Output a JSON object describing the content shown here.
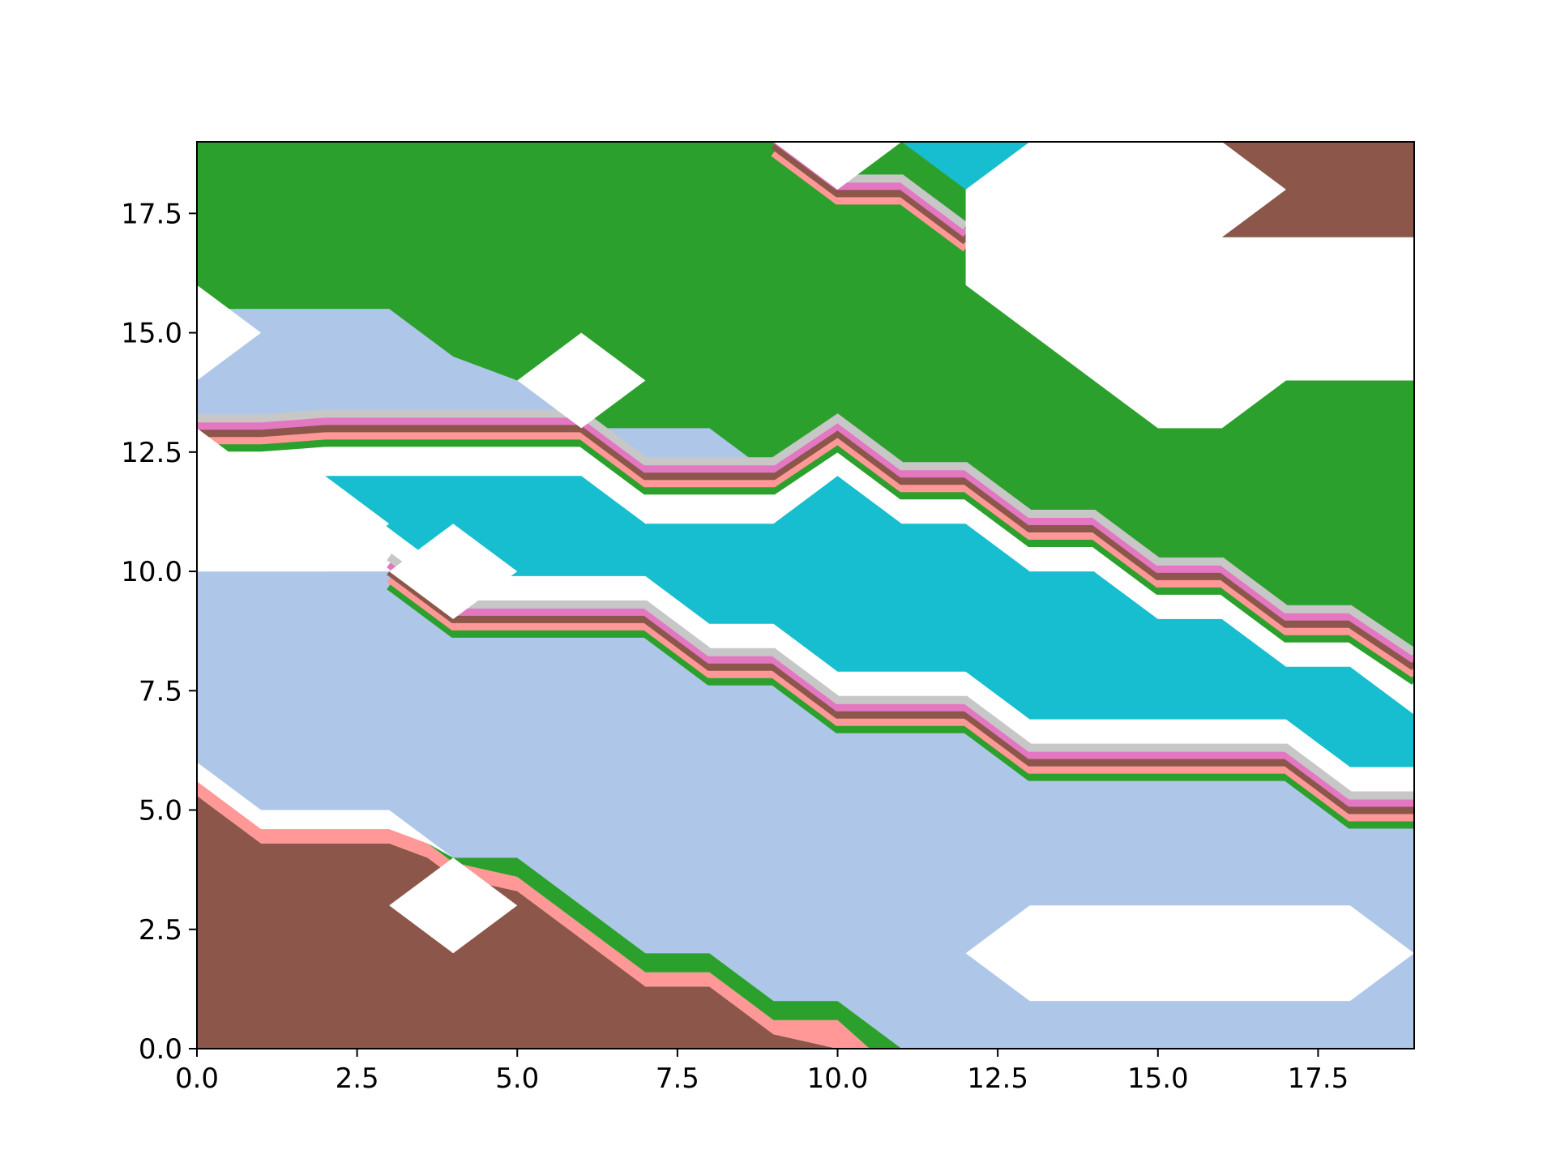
{
  "chart_data": {
    "type": "contourf",
    "title": "",
    "xlabel": "",
    "ylabel": "",
    "xlim": [
      0,
      19
    ],
    "ylim": [
      0,
      19
    ],
    "grid": false,
    "legend": "none",
    "x_ticks": [
      "0.0",
      "2.5",
      "5.0",
      "7.5",
      "10.0",
      "12.5",
      "15.0",
      "17.5"
    ],
    "y_ticks": [
      "0.0",
      "2.5",
      "5.0",
      "7.5",
      "10.0",
      "12.5",
      "15.0",
      "17.5"
    ],
    "x_tick_values": [
      0,
      2.5,
      5,
      7.5,
      10,
      12.5,
      15,
      17.5
    ],
    "y_tick_values": [
      0,
      2.5,
      5,
      7.5,
      10,
      12.5,
      15,
      17.5
    ],
    "colors": {
      "brown": "#8c564b",
      "salmon": "#ff9896",
      "green": "#2ca02c",
      "lightblue": "#aec7e8",
      "cyan": "#17becf",
      "pink": "#e377c2",
      "gray": "#c7c7c7",
      "white": "#ffffff",
      "axes": "#000000"
    },
    "regions": [
      {
        "color": "green",
        "points": [
          [
            0,
            19
          ],
          [
            19,
            19
          ],
          [
            19,
            8
          ],
          [
            18,
            8.9
          ],
          [
            17,
            8.9
          ],
          [
            16,
            9.9
          ],
          [
            15,
            9.9
          ],
          [
            14,
            10.9
          ],
          [
            13,
            10.9
          ],
          [
            12,
            11.9
          ],
          [
            11,
            11.9
          ],
          [
            10,
            12.9
          ],
          [
            9,
            12
          ],
          [
            7,
            12
          ],
          [
            6,
            13
          ],
          [
            0,
            13
          ]
        ]
      },
      {
        "color": "lightblue",
        "points": [
          [
            0,
            15.5
          ],
          [
            3,
            15.5
          ],
          [
            4,
            14.5
          ],
          [
            5,
            14
          ],
          [
            6,
            13
          ],
          [
            0,
            13
          ]
        ]
      },
      {
        "color": "lightblue",
        "points": [
          [
            6,
            13
          ],
          [
            8,
            13
          ],
          [
            9,
            12
          ],
          [
            7,
            12
          ]
        ]
      },
      {
        "color": "lightblue",
        "points": [
          [
            0,
            10
          ],
          [
            3,
            10
          ],
          [
            4,
            9
          ],
          [
            6,
            9
          ],
          [
            7,
            9
          ],
          [
            8,
            8
          ],
          [
            9,
            8
          ],
          [
            10,
            7
          ],
          [
            12,
            7
          ],
          [
            13,
            6
          ],
          [
            17,
            6
          ],
          [
            18,
            5
          ],
          [
            19,
            5
          ],
          [
            19,
            0
          ],
          [
            11,
            0
          ],
          [
            10,
            1
          ],
          [
            9,
            1
          ],
          [
            8,
            2
          ],
          [
            7,
            2
          ],
          [
            5,
            4
          ],
          [
            4,
            4
          ],
          [
            3,
            5
          ],
          [
            1,
            5
          ],
          [
            0,
            6
          ]
        ]
      },
      {
        "color": "cyan",
        "points": [
          [
            1,
            12
          ],
          [
            6,
            12
          ],
          [
            7,
            11
          ],
          [
            9,
            11
          ],
          [
            10,
            12
          ],
          [
            11,
            11
          ],
          [
            12,
            11
          ],
          [
            13,
            10
          ],
          [
            14,
            10
          ],
          [
            15,
            9
          ],
          [
            16,
            9
          ],
          [
            17,
            8
          ],
          [
            18,
            8
          ],
          [
            19,
            7
          ],
          [
            19,
            5.9
          ],
          [
            18,
            5.9
          ],
          [
            17,
            6.9
          ],
          [
            13,
            6.9
          ],
          [
            12,
            7.9
          ],
          [
            10,
            7.9
          ],
          [
            9,
            8.9
          ],
          [
            8,
            8.9
          ],
          [
            7,
            9.9
          ],
          [
            5,
            9.9
          ],
          [
            4,
            9.9
          ],
          [
            3,
            10.9
          ],
          [
            2,
            12
          ]
        ]
      },
      {
        "color": "cyan",
        "points": [
          [
            11,
            19
          ],
          [
            13,
            19
          ],
          [
            12,
            18
          ]
        ]
      },
      {
        "color": "brown",
        "points": [
          [
            0,
            0
          ],
          [
            10,
            0
          ],
          [
            9,
            0.3
          ],
          [
            8,
            1.3
          ],
          [
            7,
            1.3
          ],
          [
            5,
            3.3
          ],
          [
            4,
            3.6
          ],
          [
            3.6,
            4
          ],
          [
            3,
            4.3
          ],
          [
            1,
            4.3
          ],
          [
            0,
            5.3
          ]
        ]
      },
      {
        "color": "salmon",
        "points": [
          [
            0,
            5.3
          ],
          [
            1,
            4.3
          ],
          [
            3,
            4.3
          ],
          [
            3.6,
            4
          ],
          [
            4,
            3.6
          ],
          [
            5,
            3.3
          ],
          [
            7,
            1.3
          ],
          [
            8,
            1.3
          ],
          [
            9,
            0.3
          ],
          [
            10,
            0
          ],
          [
            10.5,
            0
          ],
          [
            10,
            0.6
          ],
          [
            9,
            0.6
          ],
          [
            8,
            1.6
          ],
          [
            7,
            1.6
          ],
          [
            5,
            3.6
          ],
          [
            4,
            3.9
          ],
          [
            3.6,
            4.3
          ],
          [
            3,
            4.6
          ],
          [
            1,
            4.6
          ],
          [
            0,
            5.6
          ]
        ]
      },
      {
        "color": "green",
        "points": [
          [
            0,
            5.6
          ],
          [
            1,
            4.6
          ],
          [
            3,
            4.6
          ],
          [
            3.6,
            4.3
          ],
          [
            4,
            4
          ],
          [
            5,
            4
          ],
          [
            7,
            2
          ],
          [
            8,
            2
          ],
          [
            9,
            1
          ],
          [
            10,
            1
          ],
          [
            11,
            0
          ],
          [
            10.5,
            0
          ],
          [
            10,
            0.6
          ],
          [
            9,
            0.6
          ],
          [
            8,
            1.6
          ],
          [
            7,
            1.6
          ],
          [
            5,
            3.6
          ],
          [
            4,
            3.9
          ],
          [
            3.6,
            4.3
          ],
          [
            3,
            4.6
          ],
          [
            1,
            4.6
          ],
          [
            0,
            5.6
          ]
        ]
      },
      {
        "color": "brown",
        "points": [
          [
            16,
            19
          ],
          [
            19,
            19
          ],
          [
            19,
            17
          ],
          [
            16,
            17
          ],
          [
            17,
            18
          ]
        ]
      }
    ],
    "bands": [
      {
        "points": [
          [
            0,
            12.9
          ],
          [
            1,
            12.9
          ],
          [
            2,
            13
          ],
          [
            6,
            13
          ],
          [
            7,
            12
          ],
          [
            9,
            12
          ],
          [
            10,
            12.9
          ],
          [
            11,
            11.9
          ],
          [
            12,
            11.9
          ],
          [
            13,
            10.9
          ],
          [
            14,
            10.9
          ],
          [
            15,
            9.9
          ],
          [
            16,
            9.9
          ],
          [
            17,
            8.9
          ],
          [
            18,
            8.9
          ],
          [
            19,
            8
          ]
        ],
        "stack": [
          "green",
          "salmon",
          "brown",
          "pink",
          "gray"
        ]
      },
      {
        "points": [
          [
            3,
            10
          ],
          [
            4,
            9
          ],
          [
            7,
            9
          ],
          [
            8,
            8
          ],
          [
            9,
            8
          ],
          [
            10,
            7
          ],
          [
            12,
            7
          ],
          [
            13,
            6
          ],
          [
            17,
            6
          ],
          [
            18,
            5
          ],
          [
            19,
            5
          ]
        ],
        "stack": [
          "green",
          "salmon",
          "brown",
          "pink",
          "gray"
        ]
      },
      {
        "points": [
          [
            9,
            19
          ],
          [
            10,
            18
          ],
          [
            11,
            18
          ],
          [
            12,
            17
          ]
        ],
        "stack": [
          "salmon",
          "brown",
          "pink",
          "gray"
        ]
      }
    ],
    "white_regions": [
      {
        "points": [
          [
            0,
            16
          ],
          [
            1,
            15
          ],
          [
            0,
            14
          ]
        ]
      },
      {
        "points": [
          [
            0,
            13
          ],
          [
            1,
            12
          ],
          [
            2,
            12
          ],
          [
            3,
            11
          ],
          [
            2,
            10
          ],
          [
            0,
            10
          ]
        ]
      },
      {
        "points": [
          [
            5,
            14
          ],
          [
            6,
            15
          ],
          [
            7,
            14
          ],
          [
            6,
            13
          ]
        ]
      },
      {
        "points": [
          [
            3,
            10
          ],
          [
            4,
            11
          ],
          [
            5,
            10
          ],
          [
            4,
            9
          ]
        ]
      },
      {
        "points": [
          [
            3,
            3
          ],
          [
            4,
            4
          ],
          [
            5,
            3
          ],
          [
            4,
            2
          ]
        ]
      },
      {
        "points": [
          [
            9,
            19
          ],
          [
            11,
            19
          ],
          [
            10,
            18
          ]
        ]
      },
      {
        "points": [
          [
            12,
            18
          ],
          [
            13,
            19
          ],
          [
            16,
            19
          ],
          [
            17,
            18
          ],
          [
            16,
            17
          ],
          [
            19,
            17
          ],
          [
            19,
            14
          ],
          [
            17,
            14
          ],
          [
            16,
            13
          ],
          [
            15,
            13
          ],
          [
            12,
            16
          ]
        ]
      },
      {
        "points": [
          [
            12,
            2
          ],
          [
            13,
            3
          ],
          [
            18,
            3
          ],
          [
            19,
            2
          ],
          [
            18,
            1
          ],
          [
            13,
            1
          ]
        ]
      }
    ]
  }
}
